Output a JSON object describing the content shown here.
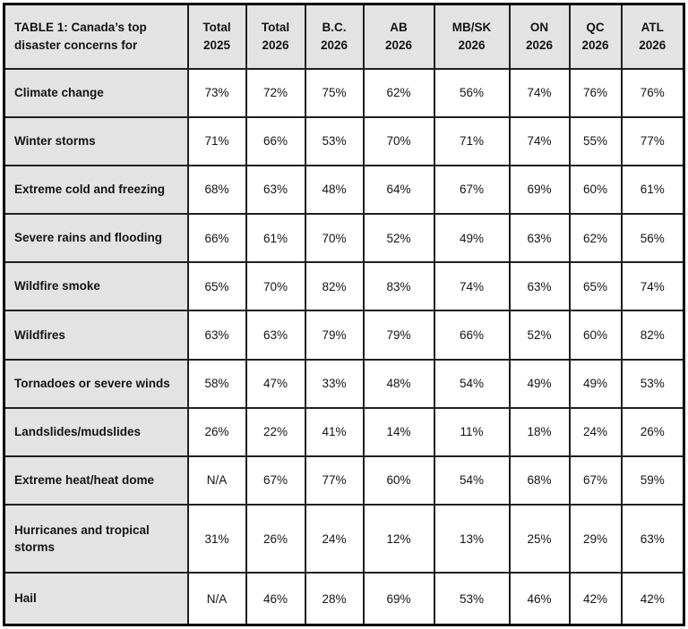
{
  "colors": {
    "header_bg": "#e3e3e3",
    "cell_bg": "#ffffff",
    "border": "#1f1f1f",
    "text": "#141414"
  },
  "chart_data": {
    "type": "table",
    "title": "TABLE 1: Canada’s top disaster concerns for",
    "columns": [
      "Total\n2025",
      "Total\n2026",
      "B.C.\n2026",
      "AB\n2026",
      "MB/SK\n2026",
      "ON\n2026",
      "QC\n2026",
      "ATL\n2026"
    ],
    "rows": [
      {
        "label": "Climate change",
        "values": [
          "73%",
          "72%",
          "75%",
          "62%",
          "56%",
          "74%",
          "76%",
          "76%"
        ]
      },
      {
        "label": "Winter storms",
        "values": [
          "71%",
          "66%",
          "53%",
          "70%",
          "71%",
          "74%",
          "55%",
          "77%"
        ]
      },
      {
        "label": "Extreme cold and freezing",
        "values": [
          "68%",
          "63%",
          "48%",
          "64%",
          "67%",
          "69%",
          "60%",
          "61%"
        ]
      },
      {
        "label": "Severe rains and flooding",
        "values": [
          "66%",
          "61%",
          "70%",
          "52%",
          "49%",
          "63%",
          "62%",
          "56%"
        ]
      },
      {
        "label": "Wildfire smoke",
        "values": [
          "65%",
          "70%",
          "82%",
          "83%",
          "74%",
          "63%",
          "65%",
          "74%"
        ]
      },
      {
        "label": "Wildfires",
        "values": [
          "63%",
          "63%",
          "79%",
          "79%",
          "66%",
          "52%",
          "60%",
          "82%"
        ]
      },
      {
        "label": "Tornadoes or severe winds",
        "values": [
          "58%",
          "47%",
          "33%",
          "48%",
          "54%",
          "49%",
          "49%",
          "53%"
        ]
      },
      {
        "label": "Landslides/mudslides",
        "values": [
          "26%",
          "22%",
          "41%",
          "14%",
          "11%",
          "18%",
          "24%",
          "26%"
        ]
      },
      {
        "label": "Extreme heat/heat dome",
        "values": [
          "N/A",
          "67%",
          "77%",
          "60%",
          "54%",
          "68%",
          "67%",
          "59%"
        ]
      },
      {
        "label": "Hurricanes and tropical storms",
        "values": [
          "31%",
          "26%",
          "24%",
          "12%",
          "13%",
          "25%",
          "29%",
          "63%"
        ]
      },
      {
        "label": "Hail",
        "values": [
          "N/A",
          "46%",
          "28%",
          "69%",
          "53%",
          "46%",
          "42%",
          "42%"
        ]
      }
    ]
  }
}
